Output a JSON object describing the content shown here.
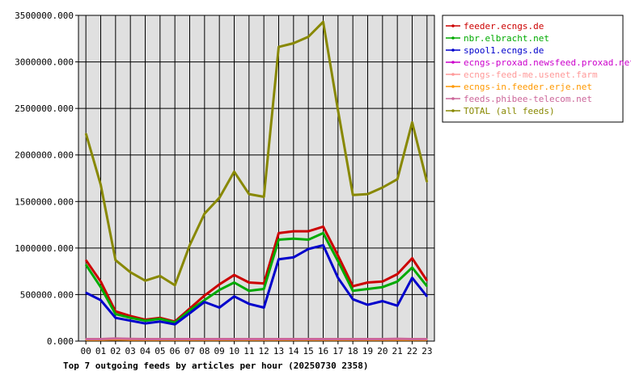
{
  "chart_data": {
    "type": "line",
    "title": "Top 7 outgoing feeds by articles per hour (20250730 2358)",
    "xlabel": "",
    "ylabel": "",
    "ylim": [
      0,
      3500000
    ],
    "y_ticks": [
      "0.000",
      "500000.000",
      "1000000.000",
      "1500000.000",
      "2000000.000",
      "2500000.000",
      "3000000.000",
      "3500000.000"
    ],
    "categories": [
      "00",
      "01",
      "02",
      "03",
      "04",
      "05",
      "06",
      "07",
      "08",
      "09",
      "10",
      "11",
      "12",
      "13",
      "14",
      "15",
      "16",
      "17",
      "18",
      "19",
      "20",
      "21",
      "22",
      "23"
    ],
    "grid": true,
    "legend_position": "right",
    "series": [
      {
        "name": "feeder.ecngs.de",
        "color": "#cc0000",
        "values": [
          870000,
          640000,
          320000,
          270000,
          230000,
          250000,
          210000,
          350000,
          490000,
          610000,
          710000,
          630000,
          620000,
          1160000,
          1180000,
          1180000,
          1230000,
          920000,
          590000,
          630000,
          640000,
          720000,
          890000,
          650000
        ]
      },
      {
        "name": "nbr.elbracht.net",
        "color": "#00aa00",
        "values": [
          820000,
          580000,
          290000,
          250000,
          220000,
          240000,
          200000,
          330000,
          440000,
          550000,
          630000,
          540000,
          560000,
          1090000,
          1100000,
          1090000,
          1160000,
          860000,
          540000,
          560000,
          580000,
          640000,
          790000,
          590000
        ]
      },
      {
        "name": "spool1.ecngs.de",
        "color": "#0000cc",
        "values": [
          520000,
          440000,
          250000,
          220000,
          190000,
          210000,
          180000,
          300000,
          420000,
          360000,
          480000,
          400000,
          360000,
          880000,
          900000,
          990000,
          1030000,
          680000,
          450000,
          390000,
          430000,
          380000,
          680000,
          480000
        ]
      },
      {
        "name": "ecngs-proxad.newsfeed.proxad.net",
        "color": "#cc00cc",
        "values": [
          20000,
          20000,
          25000,
          22000,
          20000,
          20000,
          20000,
          20000,
          20000,
          20000,
          20000,
          20000,
          20000,
          20000,
          20000,
          20000,
          20000,
          20000,
          20000,
          20000,
          20000,
          22000,
          20000,
          20000
        ]
      },
      {
        "name": "ecngs-feed-me.usenet.farm",
        "color": "#ff9999",
        "values": [
          18000,
          18000,
          22000,
          20000,
          18000,
          18000,
          18000,
          18000,
          18000,
          18000,
          18000,
          18000,
          18000,
          18000,
          18000,
          18000,
          18000,
          18000,
          18000,
          18000,
          18000,
          20000,
          18000,
          18000
        ]
      },
      {
        "name": "ecngs-in.feeder.erje.net",
        "color": "#ff9900",
        "values": [
          15000,
          15000,
          18000,
          16000,
          15000,
          15000,
          15000,
          15000,
          15000,
          15000,
          15000,
          15000,
          15000,
          15000,
          15000,
          15000,
          15000,
          15000,
          15000,
          15000,
          15000,
          16000,
          15000,
          15000
        ]
      },
      {
        "name": "feeds.phibee-telecom.net",
        "color": "#cc6699",
        "values": [
          22000,
          22000,
          28000,
          24000,
          22000,
          22000,
          22000,
          22000,
          22000,
          22000,
          22000,
          22000,
          22000,
          22000,
          22000,
          22000,
          22000,
          22000,
          22000,
          22000,
          22000,
          25000,
          22000,
          22000
        ]
      },
      {
        "name": "TOTAL (all feeds)",
        "color": "#888800",
        "values": [
          2230000,
          1680000,
          870000,
          740000,
          650000,
          700000,
          600000,
          1030000,
          1370000,
          1540000,
          1820000,
          1580000,
          1550000,
          3160000,
          3200000,
          3270000,
          3430000,
          2480000,
          1570000,
          1580000,
          1650000,
          1740000,
          2350000,
          1710000
        ]
      }
    ]
  }
}
